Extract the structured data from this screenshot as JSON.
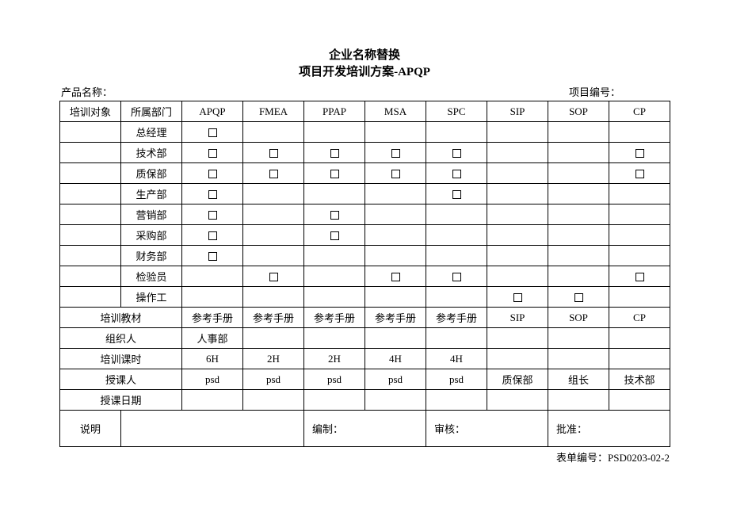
{
  "title1": "企业名称替换",
  "title2": "项目开发培训方案-APQP",
  "product_label": "产品名称：",
  "project_label": "项目编号：",
  "columns": {
    "obj": "培训对象",
    "dept": "所属部门",
    "c1": "APQP",
    "c2": "FMEA",
    "c3": "PPAP",
    "c4": "MSA",
    "c5": "SPC",
    "c6": "SIP",
    "c7": "SOP",
    "c8": "CP"
  },
  "depts": {
    "d1": "总经理",
    "d2": "技术部",
    "d3": "质保部",
    "d4": "生产部",
    "d5": "营销部",
    "d6": "采购部",
    "d7": "财务部",
    "d8": "检验员",
    "d9": "操作工"
  },
  "rows_meta": {
    "material": "培训教材",
    "organizer": "组织人",
    "hours": "培训课时",
    "lecturer": "授课人",
    "date": "授课日期"
  },
  "material": {
    "c1": "参考手册",
    "c2": "参考手册",
    "c3": "参考手册",
    "c4": "参考手册",
    "c5": "参考手册",
    "c6": "SIP",
    "c7": "SOP",
    "c8": "CP"
  },
  "organizer": {
    "c1": "人事部"
  },
  "hours": {
    "c1": "6H",
    "c2": "2H",
    "c3": "2H",
    "c4": "4H",
    "c5": "4H"
  },
  "lecturer": {
    "c1": "psd",
    "c2": "psd",
    "c3": "psd",
    "c4": "psd",
    "c5": "psd",
    "c6": "质保部",
    "c7": "组长",
    "c8": "技术部"
  },
  "desc_label": "说明",
  "sign": {
    "compile": "编制：",
    "review": "审核：",
    "approve": "批准："
  },
  "form_id": "表单编号：PSD0203-02-2",
  "checks": {
    "d1": [
      1,
      0,
      0,
      0,
      0,
      0,
      0,
      0
    ],
    "d2": [
      1,
      1,
      1,
      1,
      1,
      0,
      0,
      1
    ],
    "d3": [
      1,
      1,
      1,
      1,
      1,
      0,
      0,
      1
    ],
    "d4": [
      1,
      0,
      0,
      0,
      1,
      0,
      0,
      0
    ],
    "d5": [
      1,
      0,
      1,
      0,
      0,
      0,
      0,
      0
    ],
    "d6": [
      1,
      0,
      1,
      0,
      0,
      0,
      0,
      0
    ],
    "d7": [
      1,
      0,
      0,
      0,
      0,
      0,
      0,
      0
    ],
    "d8": [
      0,
      1,
      0,
      1,
      1,
      0,
      0,
      1
    ],
    "d9": [
      0,
      0,
      0,
      0,
      0,
      1,
      1,
      0
    ]
  }
}
